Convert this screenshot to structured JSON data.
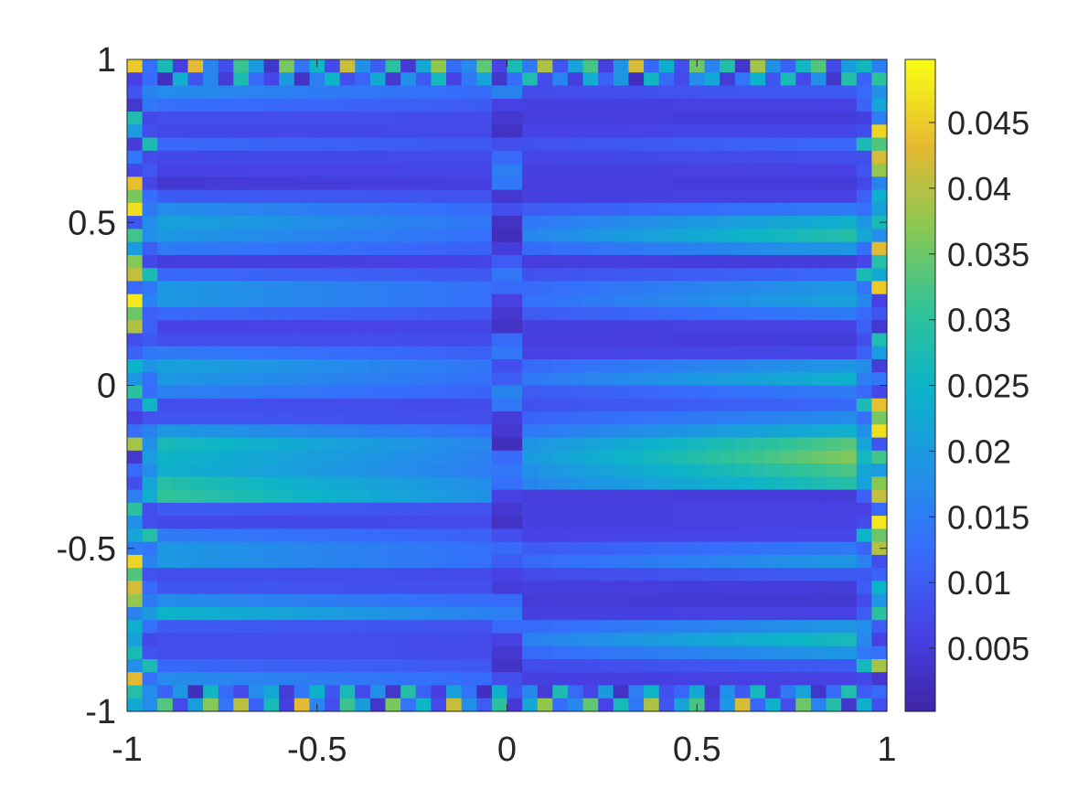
{
  "chart_data": {
    "type": "heatmap",
    "title": "",
    "xlabel": "",
    "ylabel": "",
    "xlim": [
      -1,
      1
    ],
    "ylim": [
      -1,
      1
    ],
    "grid": false,
    "colormap": "parula",
    "grid_size": [
      50,
      50
    ],
    "x_ticks": [
      -1,
      -0.5,
      0,
      0.5,
      1
    ],
    "x_tick_labels": [
      "-1",
      "-0.5",
      "0",
      "0.5",
      "1"
    ],
    "y_ticks": [
      -1,
      -0.5,
      0,
      0.5,
      1
    ],
    "y_tick_labels": [
      "-1",
      "-0.5",
      "0",
      "0.5",
      "1"
    ],
    "colorbar": {
      "range": [
        0.0002,
        0.0498
      ],
      "ticks": [
        0.005,
        0.01,
        0.015,
        0.02,
        0.025,
        0.03,
        0.035,
        0.04,
        0.045
      ],
      "tick_labels": [
        "0.005",
        "0.01",
        "0.015",
        "0.02",
        "0.025",
        "0.03",
        "0.035",
        "0.04",
        "0.045"
      ]
    },
    "row_profile_left": [
      0.02,
      0.03,
      0.018,
      0.013,
      0.008,
      0.007,
      0.012,
      0.007,
      0.006,
      0.004,
      0.01,
      0.018,
      0.022,
      0.02,
      0.015,
      0.005,
      0.012,
      0.02,
      0.02,
      0.012,
      0.006,
      0.008,
      0.015,
      0.022,
      0.02,
      0.016,
      0.008,
      0.009,
      0.02,
      0.028,
      0.026,
      0.025,
      0.03,
      0.032,
      0.01,
      0.007,
      0.015,
      0.02,
      0.02,
      0.008,
      0.009,
      0.018,
      0.026,
      0.01,
      0.008,
      0.008,
      0.012,
      0.018,
      0.015,
      0.012
    ],
    "row_profile_right": [
      0.02,
      0.03,
      0.01,
      0.006,
      0.005,
      0.007,
      0.012,
      0.008,
      0.006,
      0.005,
      0.006,
      0.015,
      0.025,
      0.03,
      0.02,
      0.005,
      0.012,
      0.02,
      0.022,
      0.015,
      0.006,
      0.005,
      0.007,
      0.02,
      0.025,
      0.015,
      0.012,
      0.018,
      0.025,
      0.035,
      0.038,
      0.034,
      0.03,
      0.005,
      0.006,
      0.006,
      0.007,
      0.015,
      0.02,
      0.01,
      0.005,
      0.004,
      0.006,
      0.02,
      0.028,
      0.02,
      0.01,
      0.006,
      0.018,
      0.015
    ],
    "center_column_profile": [
      0.012,
      0.014,
      0.016,
      0.006,
      0.004,
      0.003,
      0.008,
      0.012,
      0.015,
      0.014,
      0.004,
      0.008,
      0.003,
      0.002,
      0.005,
      0.01,
      0.014,
      0.012,
      0.006,
      0.004,
      0.003,
      0.012,
      0.014,
      0.008,
      0.01,
      0.016,
      0.014,
      0.005,
      0.004,
      0.002,
      0.012,
      0.014,
      0.013,
      0.006,
      0.004,
      0.003,
      0.008,
      0.012,
      0.01,
      0.006,
      0.005,
      0.012,
      0.015,
      0.012,
      0.006,
      0.004,
      0.003,
      0.008,
      0.012,
      0.015
    ],
    "edge_noise": [
      0.045,
      0.012,
      0.03,
      0.006,
      0.048,
      0.018,
      0.009,
      0.035,
      0.022,
      0.004,
      0.04,
      0.015,
      0.028,
      0.008,
      0.046,
      0.02,
      0.011,
      0.033,
      0.005,
      0.025,
      0.042,
      0.014,
      0.019,
      0.038,
      0.007,
      0.03,
      0.016,
      0.044,
      0.01,
      0.024,
      0.036,
      0.006,
      0.021,
      0.047,
      0.013,
      0.027,
      0.009,
      0.039,
      0.018,
      0.032,
      0.004,
      0.043,
      0.02,
      0.012,
      0.029,
      0.037,
      0.008,
      0.023,
      0.041,
      0.015
    ]
  }
}
